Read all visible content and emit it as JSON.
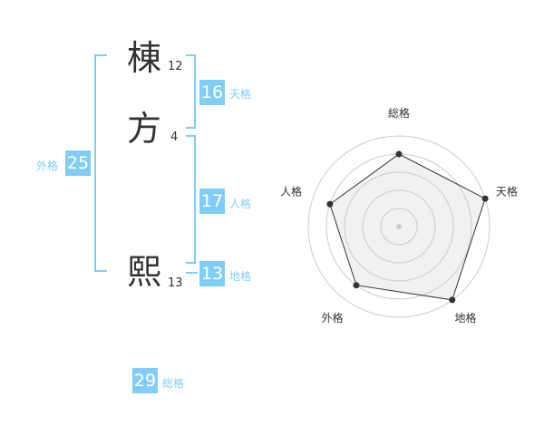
{
  "name_chars": [
    {
      "char": "棟",
      "strokes": "12"
    },
    {
      "char": "方",
      "strokes": "4"
    },
    {
      "char": "熙",
      "strokes": "13"
    }
  ],
  "fortunes": {
    "tenkaku": {
      "label": "天格",
      "value": "16"
    },
    "jinkaku": {
      "label": "人格",
      "value": "17"
    },
    "chikaku": {
      "label": "地格",
      "value": "13"
    },
    "gaikaku": {
      "label": "外格",
      "value": "25"
    },
    "soukaku": {
      "label": "総格",
      "value": "29"
    }
  },
  "accent_color": "#82cdf7",
  "chart_data": {
    "type": "radar",
    "axes": [
      "総格",
      "天格",
      "地格",
      "外格",
      "人格"
    ],
    "values": [
      4,
      5,
      5,
      4,
      4
    ],
    "range": [
      0,
      5
    ],
    "grid": true
  }
}
